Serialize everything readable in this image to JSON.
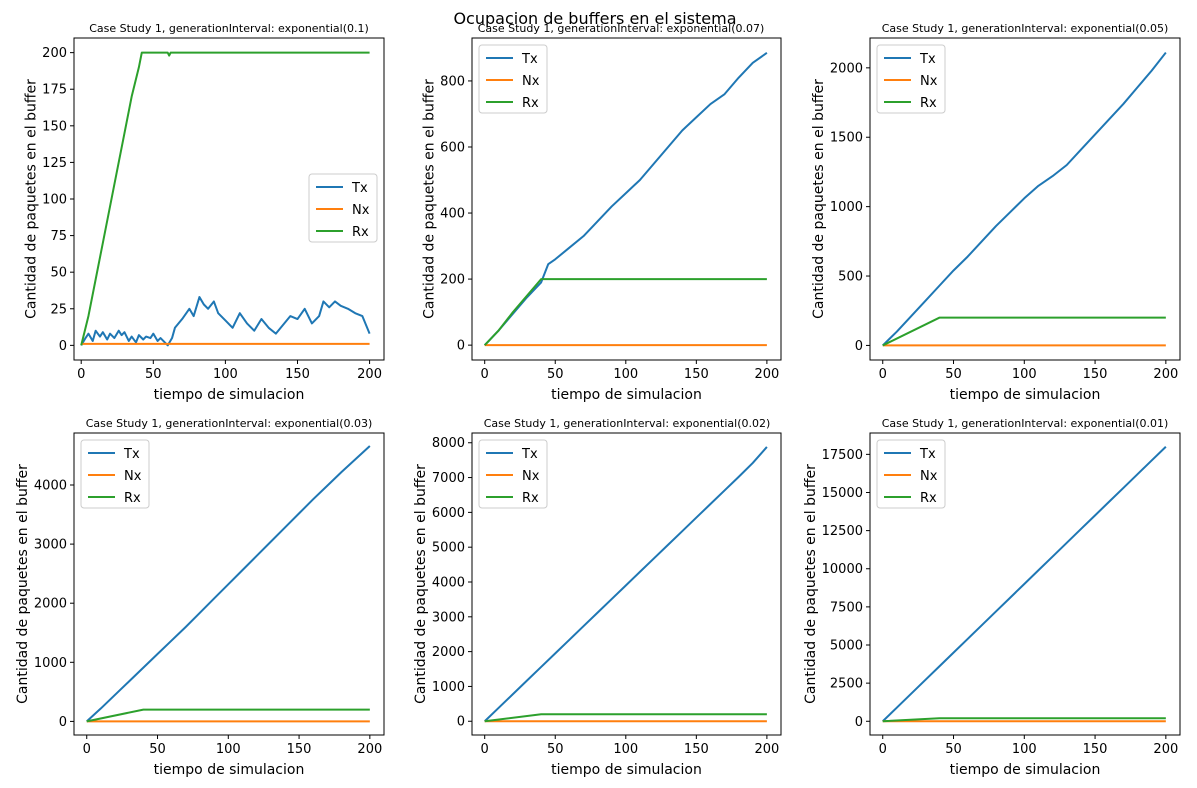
{
  "figure": {
    "title": "Ocupacion de buffers en el sistema"
  },
  "colors": {
    "Tx": "#1f77b4",
    "Nx": "#ff7f0e",
    "Rx": "#2ca02c"
  },
  "chart_data": [
    {
      "type": "line",
      "title": "Case Study 1, generationInterval: exponential(0.1)",
      "xlabel": "tiempo de simulacion",
      "ylabel": "Cantidad de paquetes en el buffer",
      "xlim": [
        -5,
        210
      ],
      "ylim": [
        -10,
        210
      ],
      "xticks": [
        0,
        50,
        100,
        150,
        200
      ],
      "yticks": [
        0,
        25,
        50,
        75,
        100,
        125,
        150,
        175,
        200
      ],
      "legend": "center-right",
      "series": [
        {
          "name": "Tx",
          "x": [
            0,
            3,
            5,
            8,
            10,
            13,
            15,
            18,
            20,
            23,
            26,
            28,
            30,
            33,
            35,
            38,
            40,
            43,
            45,
            48,
            50,
            53,
            55,
            58,
            60,
            63,
            65,
            70,
            75,
            78,
            82,
            85,
            88,
            92,
            95,
            100,
            105,
            110,
            115,
            120,
            125,
            130,
            135,
            140,
            145,
            150,
            155,
            160,
            165,
            168,
            172,
            176,
            180,
            185,
            190,
            195,
            200
          ],
          "y": [
            0,
            5,
            8,
            3,
            10,
            6,
            9,
            4,
            8,
            5,
            10,
            7,
            9,
            3,
            6,
            2,
            7,
            4,
            6,
            5,
            8,
            3,
            5,
            2,
            0,
            5,
            12,
            18,
            25,
            20,
            33,
            28,
            25,
            30,
            22,
            17,
            12,
            22,
            15,
            10,
            18,
            12,
            8,
            14,
            20,
            18,
            25,
            15,
            20,
            30,
            26,
            30,
            27,
            25,
            22,
            20,
            8
          ]
        },
        {
          "name": "Nx",
          "x": [
            0,
            200
          ],
          "y": [
            1,
            1
          ]
        },
        {
          "name": "Rx",
          "x": [
            0,
            5,
            10,
            15,
            20,
            25,
            30,
            35,
            40,
            42,
            60,
            61,
            62,
            200
          ],
          "y": [
            0,
            20,
            45,
            70,
            95,
            120,
            145,
            170,
            190,
            200,
            200,
            198,
            200,
            200
          ]
        }
      ]
    },
    {
      "type": "line",
      "title": "Case Study 1, generationInterval: exponential(0.07)",
      "xlabel": "tiempo de simulacion",
      "ylabel": "Cantidad de paquetes en el buffer",
      "xlim": [
        -9,
        210
      ],
      "ylim": [
        -45,
        930
      ],
      "xticks": [
        0,
        50,
        100,
        150,
        200
      ],
      "yticks": [
        0,
        200,
        400,
        600,
        800
      ],
      "legend": "upper-left",
      "series": [
        {
          "name": "Tx",
          "x": [
            0,
            10,
            20,
            30,
            40,
            45,
            50,
            60,
            70,
            80,
            90,
            100,
            110,
            120,
            130,
            140,
            150,
            160,
            170,
            180,
            190,
            200
          ],
          "y": [
            0,
            45,
            95,
            145,
            190,
            245,
            260,
            295,
            330,
            375,
            420,
            460,
            500,
            550,
            600,
            650,
            690,
            730,
            760,
            810,
            855,
            885
          ]
        },
        {
          "name": "Nx",
          "x": [
            0,
            200
          ],
          "y": [
            0,
            0
          ]
        },
        {
          "name": "Rx",
          "x": [
            0,
            10,
            20,
            30,
            40,
            200
          ],
          "y": [
            0,
            45,
            100,
            150,
            200,
            200
          ]
        }
      ]
    },
    {
      "type": "line",
      "title": "Case Study 1, generationInterval: exponential(0.05)",
      "xlabel": "tiempo de simulacion",
      "ylabel": "Cantidad de paquetes en el buffer",
      "xlim": [
        -9,
        210
      ],
      "ylim": [
        -105,
        2215
      ],
      "xticks": [
        0,
        50,
        100,
        150,
        200
      ],
      "yticks": [
        0,
        500,
        1000,
        1500,
        2000
      ],
      "legend": "upper-left",
      "series": [
        {
          "name": "Tx",
          "x": [
            0,
            10,
            20,
            30,
            40,
            50,
            60,
            70,
            80,
            90,
            100,
            110,
            120,
            130,
            140,
            150,
            160,
            170,
            180,
            190,
            200
          ],
          "y": [
            0,
            100,
            210,
            320,
            430,
            540,
            640,
            750,
            860,
            960,
            1060,
            1150,
            1220,
            1300,
            1410,
            1520,
            1630,
            1740,
            1860,
            1980,
            2110
          ]
        },
        {
          "name": "Nx",
          "x": [
            0,
            200
          ],
          "y": [
            0,
            0
          ]
        },
        {
          "name": "Rx",
          "x": [
            0,
            40,
            200
          ],
          "y": [
            0,
            200,
            200
          ]
        }
      ]
    },
    {
      "type": "line",
      "title": "Case Study 1, generationInterval: exponential(0.03)",
      "xlabel": "tiempo de simulacion",
      "ylabel": "Cantidad de paquetes en el buffer",
      "xlim": [
        -9,
        210
      ],
      "ylim": [
        -230,
        4880
      ],
      "xticks": [
        0,
        50,
        100,
        150,
        200
      ],
      "yticks": [
        0,
        1000,
        2000,
        3000,
        4000
      ],
      "legend": "upper-left",
      "series": [
        {
          "name": "Tx",
          "x": [
            0,
            10,
            20,
            30,
            40,
            50,
            60,
            70,
            80,
            90,
            100,
            110,
            120,
            130,
            140,
            150,
            160,
            170,
            180,
            190,
            200
          ],
          "y": [
            0,
            220,
            450,
            680,
            910,
            1140,
            1370,
            1600,
            1840,
            2080,
            2320,
            2560,
            2800,
            3040,
            3280,
            3520,
            3760,
            3990,
            4220,
            4440,
            4660
          ]
        },
        {
          "name": "Nx",
          "x": [
            0,
            200
          ],
          "y": [
            0,
            0
          ]
        },
        {
          "name": "Rx",
          "x": [
            0,
            40,
            200
          ],
          "y": [
            0,
            200,
            200
          ]
        }
      ]
    },
    {
      "type": "line",
      "title": "Case Study 1, generationInterval: exponential(0.02)",
      "xlabel": "tiempo de simulacion",
      "ylabel": "Cantidad de paquetes en el buffer",
      "xlim": [
        -9,
        210
      ],
      "ylim": [
        -395,
        8280
      ],
      "xticks": [
        0,
        50,
        100,
        150,
        200
      ],
      "yticks": [
        0,
        1000,
        2000,
        3000,
        4000,
        5000,
        6000,
        7000,
        8000
      ],
      "legend": "upper-left",
      "series": [
        {
          "name": "Tx",
          "x": [
            0,
            10,
            20,
            30,
            40,
            50,
            60,
            70,
            80,
            90,
            100,
            110,
            120,
            130,
            140,
            150,
            160,
            170,
            180,
            190,
            200
          ],
          "y": [
            0,
            390,
            780,
            1170,
            1560,
            1950,
            2340,
            2730,
            3120,
            3510,
            3900,
            4290,
            4680,
            5070,
            5460,
            5850,
            6240,
            6630,
            7020,
            7420,
            7880
          ]
        },
        {
          "name": "Nx",
          "x": [
            0,
            200
          ],
          "y": [
            0,
            0
          ]
        },
        {
          "name": "Rx",
          "x": [
            0,
            40,
            200
          ],
          "y": [
            0,
            200,
            200
          ]
        }
      ]
    },
    {
      "type": "line",
      "title": "Case Study 1, generationInterval: exponential(0.01)",
      "xlabel": "tiempo de simulacion",
      "ylabel": "Cantidad de paquetes en el buffer",
      "xlim": [
        -9,
        210
      ],
      "ylim": [
        -900,
        18900
      ],
      "xticks": [
        0,
        50,
        100,
        150,
        200
      ],
      "yticks": [
        0,
        2500,
        5000,
        7500,
        10000,
        12500,
        15000,
        17500
      ],
      "legend": "upper-left",
      "series": [
        {
          "name": "Tx",
          "x": [
            0,
            10,
            20,
            30,
            40,
            50,
            60,
            70,
            80,
            90,
            100,
            110,
            120,
            130,
            140,
            150,
            160,
            170,
            180,
            190,
            200
          ],
          "y": [
            0,
            900,
            1800,
            2700,
            3600,
            4500,
            5400,
            6300,
            7200,
            8100,
            9000,
            9900,
            10800,
            11700,
            12600,
            13500,
            14400,
            15300,
            16200,
            17100,
            18000
          ]
        },
        {
          "name": "Nx",
          "x": [
            0,
            200
          ],
          "y": [
            0,
            0
          ]
        },
        {
          "name": "Rx",
          "x": [
            0,
            40,
            200
          ],
          "y": [
            0,
            200,
            200
          ]
        }
      ]
    }
  ]
}
